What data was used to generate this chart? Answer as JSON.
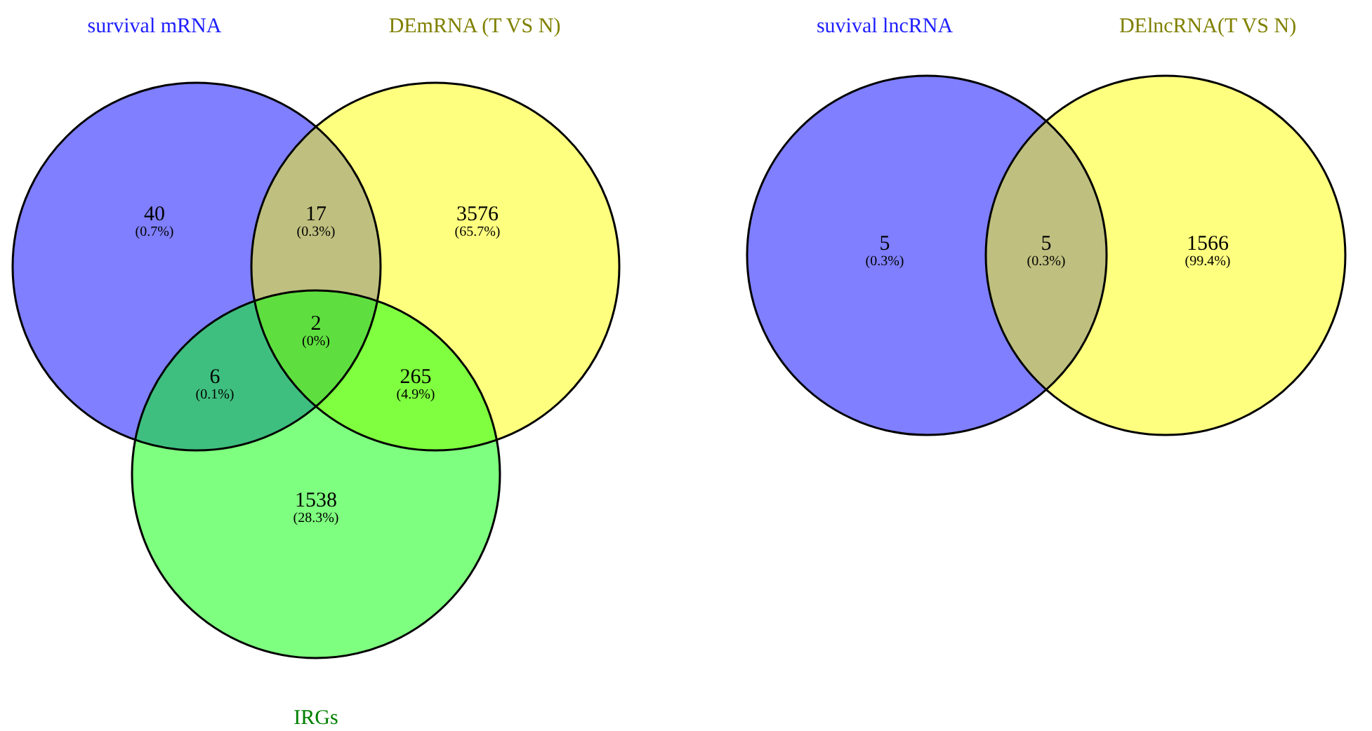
{
  "chart_data": [
    {
      "type": "other",
      "categories": [
        null,
        null,
        null,
        null,
        null,
        null,
        null
      ],
      "values": [
        40,
        17,
        3576,
        2,
        6,
        265,
        1538
      ],
      "data_labels": true,
      "annotations": [
        "survival mRNA",
        "DEmRNA (T VS N)",
        "IRGs",
        "(0.7%)",
        "(0.3%)",
        "(65.7%)",
        "(0%)",
        "(0.1%)",
        "(4.9%)",
        "(28.3%)"
      ]
    },
    {
      "type": "other",
      "categories": [
        null,
        null,
        null
      ],
      "values": [
        5,
        5,
        1566
      ],
      "data_labels": true,
      "annotations": [
        "suvival lncRNA",
        "DElncRNA(T VS N)",
        "(0.3%)",
        "(0.3%)",
        "(99.4%)"
      ]
    }
  ]
}
